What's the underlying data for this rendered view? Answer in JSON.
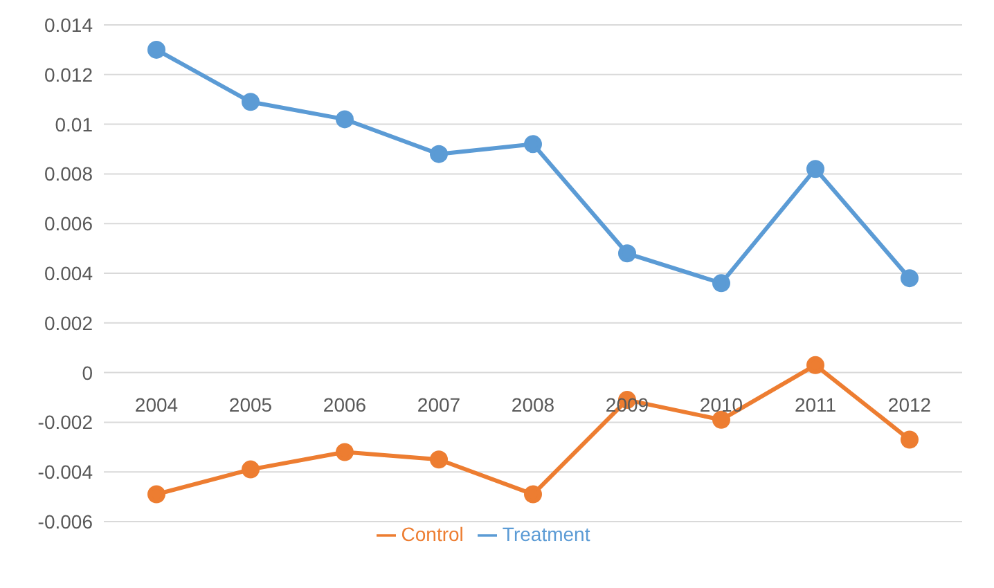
{
  "chart_data": {
    "type": "line",
    "categories": [
      "2004",
      "2005",
      "2006",
      "2007",
      "2008",
      "2009",
      "2010",
      "2011",
      "2012"
    ],
    "series": [
      {
        "name": "Treatment",
        "color": "#5b9bd5",
        "values": [
          0.013,
          0.0109,
          0.0102,
          0.0088,
          0.0092,
          0.0048,
          0.0036,
          0.0082,
          0.0038
        ]
      },
      {
        "name": "Control",
        "color": "#ed7d31",
        "values": [
          -0.0049,
          -0.0039,
          -0.0032,
          -0.0035,
          -0.0049,
          -0.0011,
          -0.0019,
          0.0003,
          -0.0027
        ]
      }
    ],
    "ylim": [
      -0.006,
      0.014
    ],
    "yticks": [
      -0.006,
      -0.004,
      -0.002,
      0,
      0.002,
      0.004,
      0.006,
      0.008,
      0.01,
      0.012,
      0.014
    ],
    "grid": "y",
    "legend": "bottom",
    "marker": "circle",
    "line_style": "solid"
  }
}
